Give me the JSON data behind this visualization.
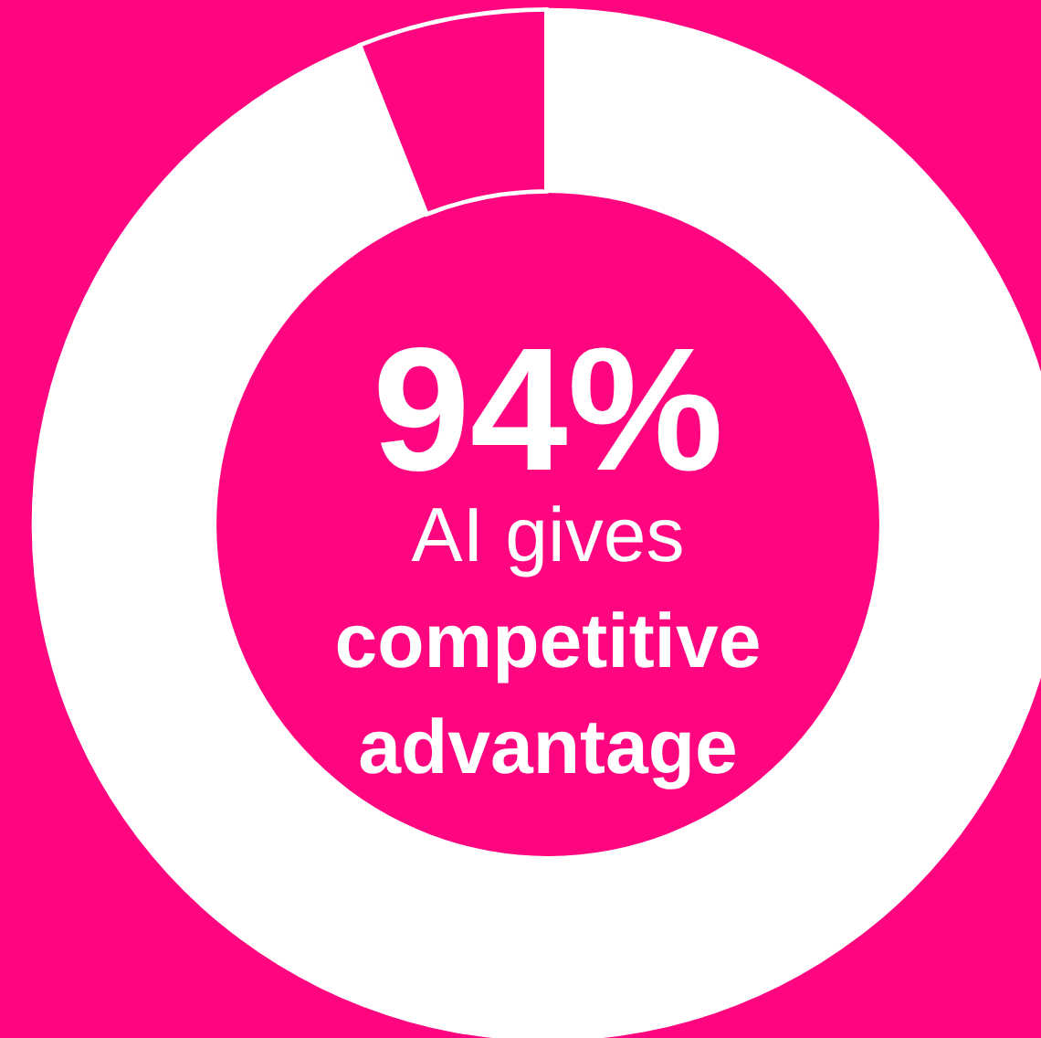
{
  "chart_data": {
    "type": "donut",
    "categories": [
      null,
      null
    ],
    "values": [
      94,
      6
    ],
    "colors": [
      "#ffffff",
      "#ff0580"
    ],
    "value_labels": [
      "94%",
      null
    ],
    "annotations": [
      "AI gives competitive advantage"
    ],
    "legend": false
  }
}
